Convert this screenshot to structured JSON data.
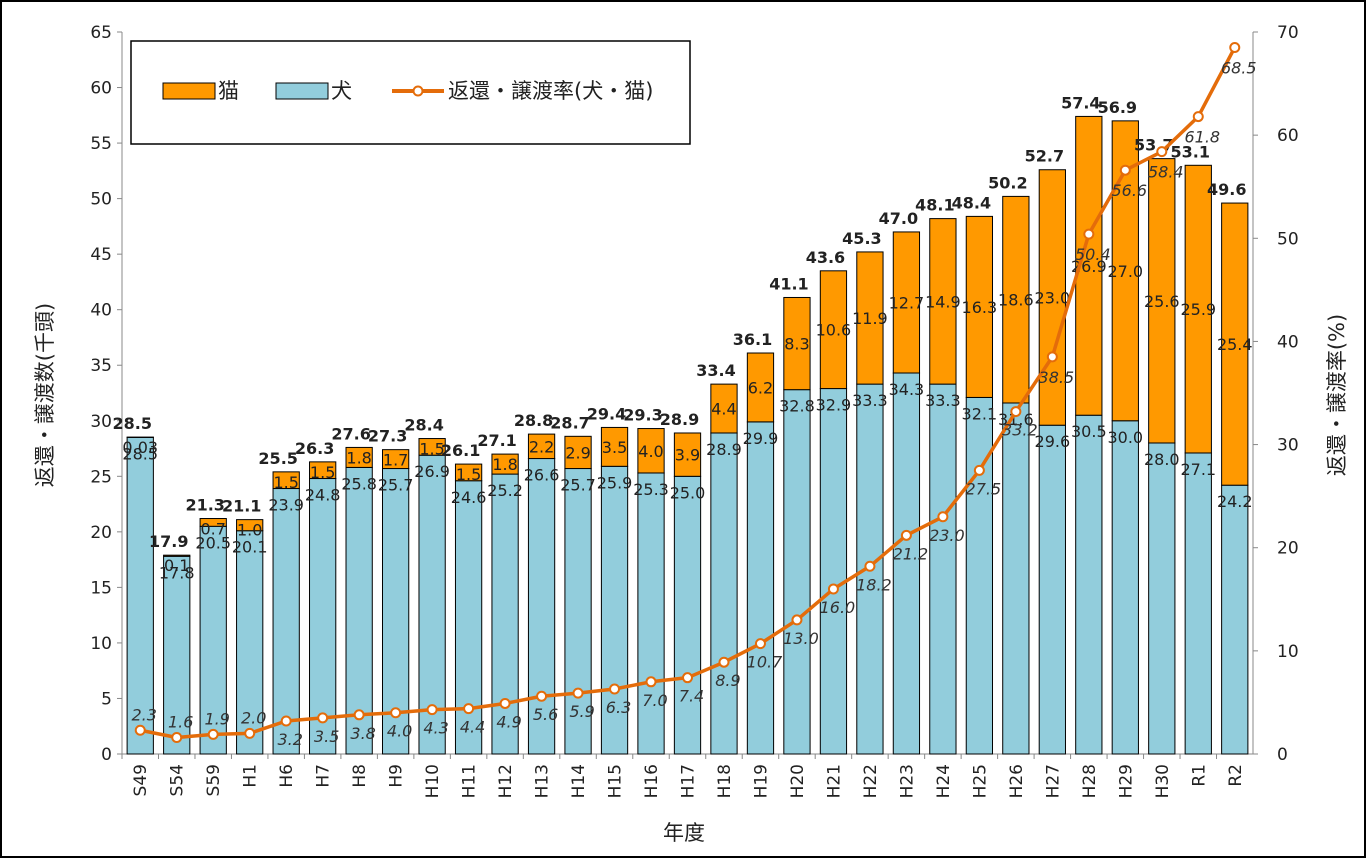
{
  "colors": {
    "cat": "#FF9900",
    "dog": "#92CDDC",
    "rate": "#E46C0A",
    "rate_marker_fill": "#ffffff"
  },
  "chart_data": {
    "type": "bar",
    "stacked": true,
    "xlabel": "年度",
    "ylabel": "返還・譲渡数(千頭)",
    "y2label": "返還・譲渡率(%)",
    "ylim": [
      0,
      65
    ],
    "y2lim": [
      0,
      70
    ],
    "grid": false,
    "legend_position": "top-left",
    "categories": [
      "S49",
      "S54",
      "S59",
      "H1",
      "H6",
      "H7",
      "H8",
      "H9",
      "H10",
      "H11",
      "H12",
      "H13",
      "H14",
      "H15",
      "H16",
      "H17",
      "H18",
      "H19",
      "H20",
      "H21",
      "H22",
      "H23",
      "H24",
      "H25",
      "H26",
      "H27",
      "H28",
      "H29",
      "H30",
      "R1",
      "R2"
    ],
    "series": [
      {
        "name": "犬",
        "axis": "left",
        "kind": "bar",
        "values": [
          28.5,
          17.8,
          20.5,
          20.1,
          23.9,
          24.8,
          25.8,
          25.7,
          26.9,
          24.6,
          25.2,
          26.6,
          25.7,
          25.9,
          25.3,
          25.0,
          28.9,
          29.9,
          32.8,
          32.9,
          33.3,
          34.3,
          33.3,
          32.1,
          31.6,
          29.6,
          30.5,
          30.0,
          28.0,
          27.1,
          24.2
        ],
        "labels": [
          "28.5",
          "17.8",
          "20.5",
          "20.1",
          "23.9",
          "24.8",
          "25.8",
          "25.7",
          "26.9",
          "24.6",
          "25.2",
          "26.6",
          "25.7",
          "25.9",
          "25.3",
          "25.0",
          "28.9",
          "29.9",
          "32.8",
          "32.9",
          "33.3",
          "34.3",
          "33.3",
          "32.1",
          "31.6",
          "29.6",
          "30.5",
          "30.0",
          "28.0",
          "27.1",
          "24.2"
        ]
      },
      {
        "name": "猫",
        "axis": "left",
        "kind": "bar",
        "values": [
          0.03,
          0.1,
          0.7,
          1.0,
          1.5,
          1.5,
          1.8,
          1.7,
          1.5,
          1.5,
          1.8,
          2.2,
          2.9,
          3.5,
          4.0,
          3.9,
          4.4,
          6.2,
          8.3,
          10.6,
          11.9,
          12.7,
          14.9,
          16.3,
          18.6,
          23.0,
          26.9,
          27.0,
          25.6,
          25.9,
          25.4
        ],
        "labels": [
          "0.03",
          "0.1",
          "0.7",
          "1.0",
          "1.5",
          "1.5",
          "1.8",
          "1.7",
          "1.5",
          "1.5",
          "1.8",
          "2.2",
          "2.9",
          "3.5",
          "4.0",
          "3.9",
          "4.4",
          "6.2",
          "8.3",
          "10.6",
          "11.9",
          "12.7",
          "14.9",
          "16.3",
          "18.6",
          "23.0",
          "26.9",
          "27.0",
          "25.6",
          "25.9",
          "25.4"
        ]
      },
      {
        "name": "返還・譲渡率(犬・猫)",
        "axis": "right",
        "kind": "line",
        "values": [
          2.3,
          1.6,
          1.9,
          2.0,
          3.2,
          3.5,
          3.8,
          4.0,
          4.3,
          4.4,
          4.9,
          5.6,
          5.9,
          6.3,
          7.0,
          7.4,
          8.9,
          10.7,
          13.0,
          16.0,
          18.2,
          21.2,
          23.0,
          27.5,
          33.2,
          38.5,
          50.4,
          56.6,
          58.4,
          61.8,
          68.5
        ],
        "labels": [
          "2.3",
          "1.6",
          "1.9",
          "2.0",
          "3.2",
          "3.5",
          "3.8",
          "4.0",
          "4.3",
          "4.4",
          "4.9",
          "5.6",
          "5.9",
          "6.3",
          "7.0",
          "7.4",
          "8.9",
          "10.7",
          "13.0",
          "16.0",
          "18.2",
          "21.2",
          "23.0",
          "27.5",
          "33.2",
          "38.5",
          "50.4",
          "56.6",
          "58.4",
          "61.8",
          "68.5"
        ]
      }
    ],
    "totals": [
      28.5,
      17.9,
      21.3,
      21.1,
      25.5,
      26.3,
      27.6,
      27.3,
      28.4,
      26.1,
      27.1,
      28.8,
      28.7,
      29.4,
      29.3,
      28.9,
      33.4,
      36.1,
      41.1,
      43.6,
      45.3,
      47.0,
      48.1,
      48.4,
      50.2,
      52.7,
      57.4,
      56.9,
      53.7,
      53.1,
      49.6
    ],
    "total_labels": [
      "28.5",
      "17.9",
      "21.3",
      "21.1",
      "25.5",
      "26.3",
      "27.6",
      "27.3",
      "28.4",
      "26.1",
      "27.1",
      "28.8",
      "28.7",
      "29.4",
      "29.3",
      "28.9",
      "33.4",
      "36.1",
      "41.1",
      "43.6",
      "45.3",
      "47.0",
      "48.1",
      "48.4",
      "50.2",
      "52.7",
      "57.4",
      "56.9",
      "53.7",
      "53.1",
      "49.6"
    ],
    "y_ticks": [
      "0",
      "5",
      "10",
      "15",
      "20",
      "25",
      "30",
      "35",
      "40",
      "45",
      "50",
      "55",
      "60",
      "65"
    ],
    "y2_ticks": [
      "0",
      "10",
      "20",
      "30",
      "40",
      "50",
      "60",
      "70"
    ]
  }
}
